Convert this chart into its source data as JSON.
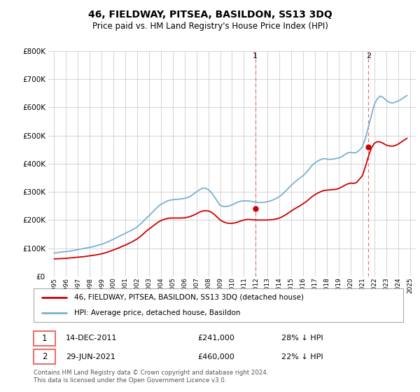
{
  "title": "46, FIELDWAY, PITSEA, BASILDON, SS13 3DQ",
  "subtitle": "Price paid vs. HM Land Registry's House Price Index (HPI)",
  "footer": "Contains HM Land Registry data © Crown copyright and database right 2024.\nThis data is licensed under the Open Government Licence v3.0.",
  "legend_line1": "46, FIELDWAY, PITSEA, BASILDON, SS13 3DQ (detached house)",
  "legend_line2": "HPI: Average price, detached house, Basildon",
  "annotation1_date": "14-DEC-2011",
  "annotation1_price": "£241,000",
  "annotation1_hpi": "28% ↓ HPI",
  "annotation2_date": "29-JUN-2021",
  "annotation2_price": "£460,000",
  "annotation2_hpi": "22% ↓ HPI",
  "red_color": "#cc0000",
  "blue_color": "#7ab0d4",
  "vline_color": "#e87070",
  "background_color": "#ffffff",
  "grid_color": "#cccccc",
  "ylim": [
    0,
    800000
  ],
  "xlim_start": 1994.5,
  "xlim_end": 2025.5,
  "point1_x": 2011.96,
  "point1_y": 241000,
  "point2_x": 2021.5,
  "point2_y": 460000,
  "hpi_years": [
    1995,
    1995.25,
    1995.5,
    1995.75,
    1996,
    1996.25,
    1996.5,
    1996.75,
    1997,
    1997.25,
    1997.5,
    1997.75,
    1998,
    1998.25,
    1998.5,
    1998.75,
    1999,
    1999.25,
    1999.5,
    1999.75,
    2000,
    2000.25,
    2000.5,
    2000.75,
    2001,
    2001.25,
    2001.5,
    2001.75,
    2002,
    2002.25,
    2002.5,
    2002.75,
    2003,
    2003.25,
    2003.5,
    2003.75,
    2004,
    2004.25,
    2004.5,
    2004.75,
    2005,
    2005.25,
    2005.5,
    2005.75,
    2006,
    2006.25,
    2006.5,
    2006.75,
    2007,
    2007.25,
    2007.5,
    2007.75,
    2008,
    2008.25,
    2008.5,
    2008.75,
    2009,
    2009.25,
    2009.5,
    2009.75,
    2010,
    2010.25,
    2010.5,
    2010.75,
    2011,
    2011.25,
    2011.5,
    2011.75,
    2012,
    2012.25,
    2012.5,
    2012.75,
    2013,
    2013.25,
    2013.5,
    2013.75,
    2014,
    2014.25,
    2014.5,
    2014.75,
    2015,
    2015.25,
    2015.5,
    2015.75,
    2016,
    2016.25,
    2016.5,
    2016.75,
    2017,
    2017.25,
    2017.5,
    2017.75,
    2018,
    2018.25,
    2018.5,
    2018.75,
    2019,
    2019.25,
    2019.5,
    2019.75,
    2020,
    2020.25,
    2020.5,
    2020.75,
    2021,
    2021.25,
    2021.5,
    2021.75,
    2022,
    2022.25,
    2022.5,
    2022.75,
    2023,
    2023.25,
    2023.5,
    2023.75,
    2024,
    2024.25,
    2024.5,
    2024.75
  ],
  "hpi_values": [
    83000,
    84000,
    86000,
    87000,
    88000,
    89000,
    91000,
    93000,
    95000,
    97000,
    99000,
    101000,
    103000,
    105000,
    108000,
    111000,
    114000,
    118000,
    122000,
    127000,
    132000,
    137000,
    143000,
    148000,
    153000,
    158000,
    163000,
    169000,
    176000,
    185000,
    195000,
    206000,
    216000,
    226000,
    237000,
    247000,
    256000,
    261000,
    267000,
    270000,
    272000,
    273000,
    274000,
    275000,
    277000,
    280000,
    285000,
    292000,
    300000,
    307000,
    313000,
    313000,
    308000,
    298000,
    283000,
    267000,
    252000,
    248000,
    248000,
    250000,
    254000,
    259000,
    264000,
    267000,
    268000,
    268000,
    267000,
    265000,
    263000,
    262000,
    262000,
    263000,
    265000,
    268000,
    272000,
    277000,
    283000,
    292000,
    302000,
    313000,
    323000,
    333000,
    342000,
    350000,
    358000,
    368000,
    381000,
    394000,
    403000,
    410000,
    415000,
    418000,
    416000,
    415000,
    416000,
    418000,
    420000,
    425000,
    432000,
    438000,
    440000,
    438000,
    440000,
    448000,
    460000,
    490000,
    530000,
    570000,
    610000,
    630000,
    640000,
    635000,
    625000,
    618000,
    615000,
    618000,
    622000,
    628000,
    635000,
    642000
  ],
  "red_years": [
    1995,
    1995.25,
    1995.5,
    1995.75,
    1996,
    1996.25,
    1996.5,
    1996.75,
    1997,
    1997.25,
    1997.5,
    1997.75,
    1998,
    1998.25,
    1998.5,
    1998.75,
    1999,
    1999.25,
    1999.5,
    1999.75,
    2000,
    2000.25,
    2000.5,
    2000.75,
    2001,
    2001.25,
    2001.5,
    2001.75,
    2002,
    2002.25,
    2002.5,
    2002.75,
    2003,
    2003.25,
    2003.5,
    2003.75,
    2004,
    2004.25,
    2004.5,
    2004.75,
    2005,
    2005.25,
    2005.5,
    2005.75,
    2006,
    2006.25,
    2006.5,
    2006.75,
    2007,
    2007.25,
    2007.5,
    2007.75,
    2008,
    2008.25,
    2008.5,
    2008.75,
    2009,
    2009.25,
    2009.5,
    2009.75,
    2010,
    2010.25,
    2010.5,
    2010.75,
    2011,
    2011.25,
    2011.5,
    2011.75,
    2012,
    2012.25,
    2012.5,
    2012.75,
    2013,
    2013.25,
    2013.5,
    2013.75,
    2014,
    2014.25,
    2014.5,
    2014.75,
    2015,
    2015.25,
    2015.5,
    2015.75,
    2016,
    2016.25,
    2016.5,
    2016.75,
    2017,
    2017.25,
    2017.5,
    2017.75,
    2018,
    2018.25,
    2018.5,
    2018.75,
    2019,
    2019.25,
    2019.5,
    2019.75,
    2020,
    2020.25,
    2020.5,
    2020.75,
    2021,
    2021.25,
    2021.5,
    2021.75,
    2022,
    2022.25,
    2022.5,
    2022.75,
    2023,
    2023.25,
    2023.5,
    2023.75,
    2024,
    2024.25,
    2024.5,
    2024.75
  ],
  "red_values": [
    62000,
    62500,
    63000,
    63500,
    64000,
    65000,
    66000,
    67000,
    68000,
    69000,
    70000,
    71500,
    73000,
    74500,
    76000,
    78000,
    80000,
    83000,
    86000,
    90000,
    94000,
    98000,
    102000,
    107000,
    111000,
    116000,
    121000,
    127000,
    133000,
    141000,
    150000,
    160000,
    168000,
    176000,
    184000,
    192000,
    198000,
    202000,
    205000,
    207000,
    207000,
    207000,
    207000,
    207000,
    208000,
    210000,
    213000,
    217000,
    222000,
    228000,
    232000,
    233000,
    232000,
    228000,
    220000,
    210000,
    200000,
    194000,
    190000,
    188000,
    188000,
    190000,
    193000,
    197000,
    200000,
    202000,
    202000,
    201000,
    200000,
    200000,
    200000,
    200000,
    200000,
    201000,
    202000,
    204000,
    207000,
    212000,
    218000,
    225000,
    232000,
    239000,
    245000,
    251000,
    258000,
    265000,
    274000,
    283000,
    290000,
    296000,
    301000,
    305000,
    306000,
    307000,
    308000,
    309000,
    312000,
    317000,
    323000,
    328000,
    331000,
    330000,
    333000,
    345000,
    358000,
    390000,
    425000,
    455000,
    472000,
    478000,
    477000,
    472000,
    466000,
    463000,
    462000,
    464000,
    469000,
    476000,
    483000,
    490000
  ]
}
